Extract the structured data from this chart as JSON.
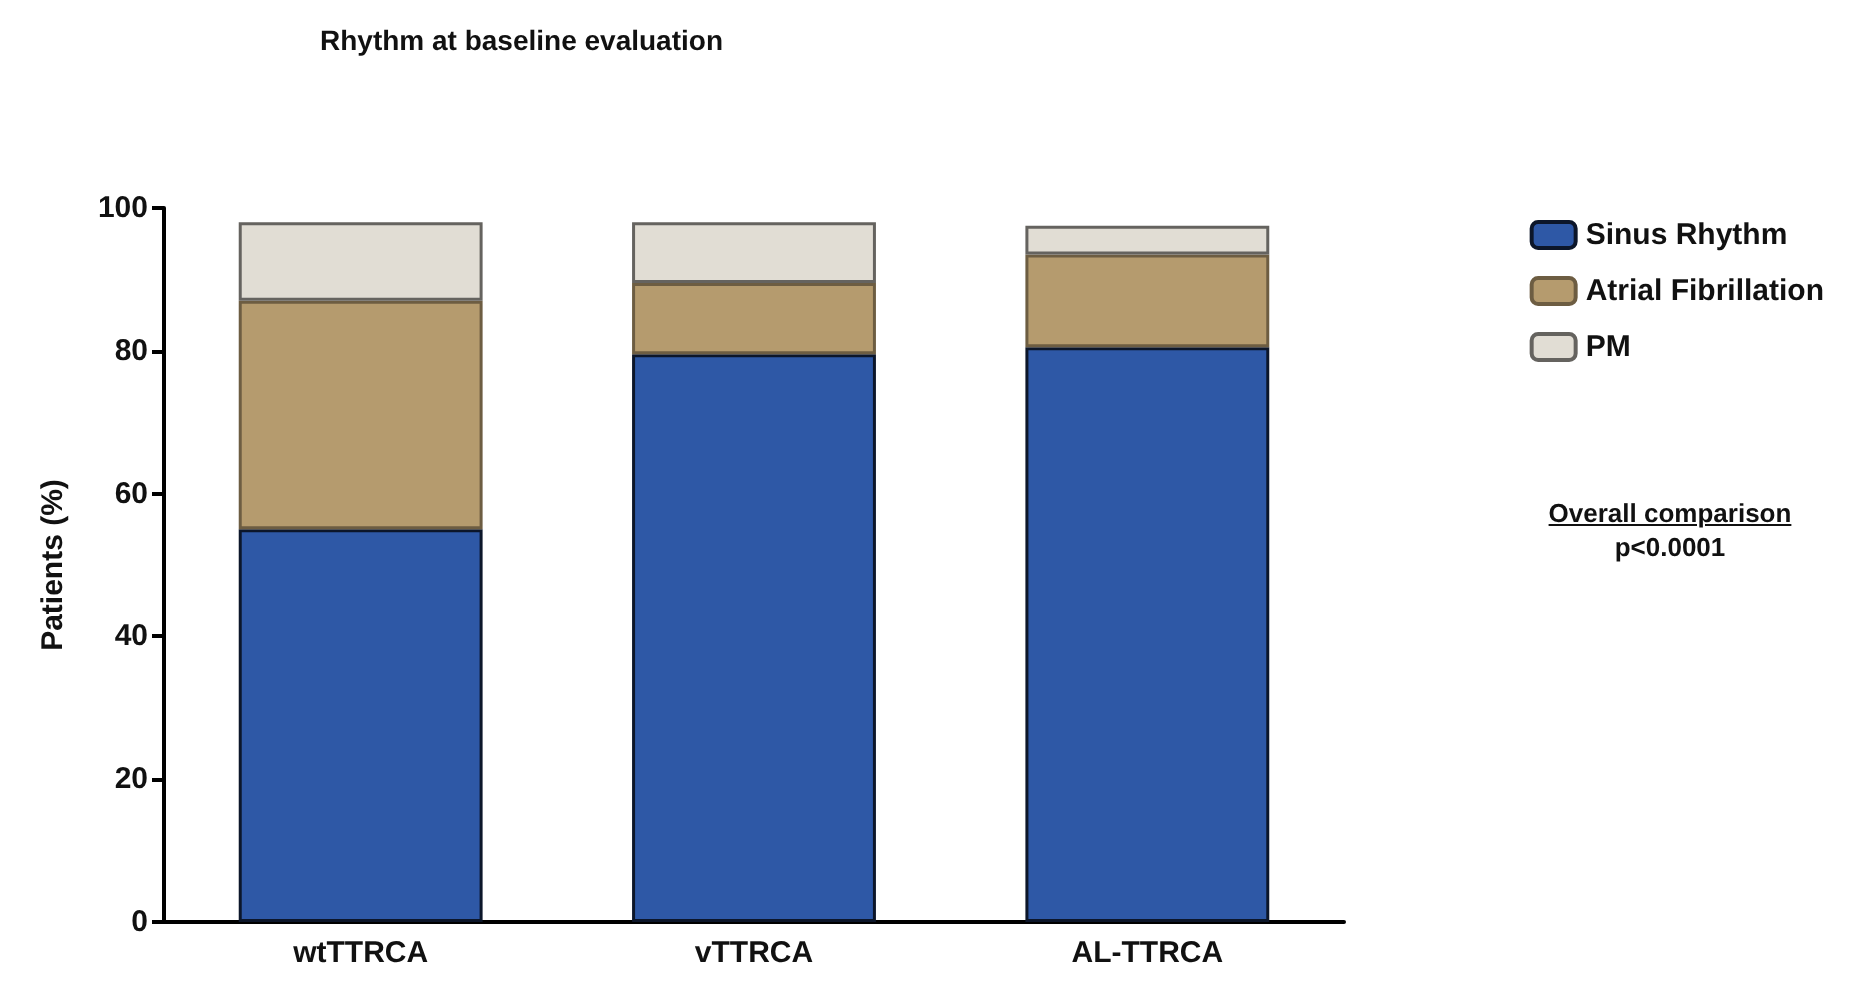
{
  "chart_data": {
    "type": "bar",
    "title": "Rhythm at baseline evaluation",
    "ylabel": "Patients (%)",
    "categories": [
      "wtTTRCA",
      "vTTRCA",
      "AL-TTRCA"
    ],
    "stacked": true,
    "series": [
      {
        "name": "Sinus Rhythm",
        "color": "#2e58a6",
        "values": [
          55,
          79.5,
          80.5
        ]
      },
      {
        "name": "Atrial Fibrillation",
        "color": "#b59b6e",
        "values": [
          32,
          10,
          13
        ]
      },
      {
        "name": "PM",
        "color": "#e1ddd4",
        "values": [
          11,
          8.5,
          4
        ]
      }
    ],
    "ylim": [
      0,
      100
    ],
    "yticks": [
      0,
      20,
      40,
      60,
      80,
      100
    ],
    "grid": false,
    "legend": "top right",
    "annotations": [
      "Overall comparison",
      "p<0.0001"
    ]
  }
}
